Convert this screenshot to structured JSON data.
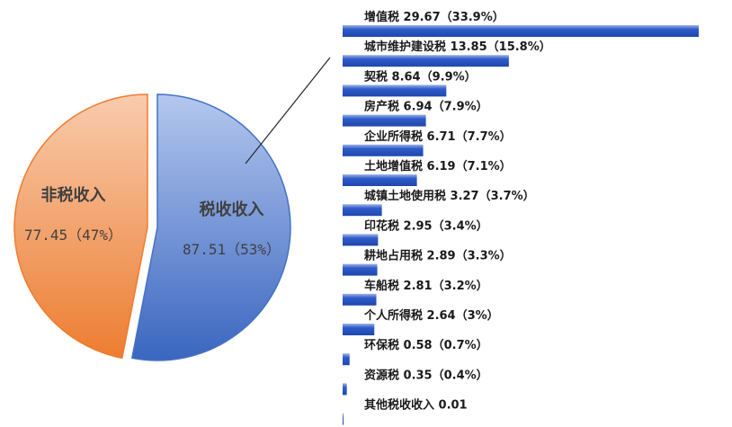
{
  "chart_data": [
    {
      "type": "pie",
      "slices": [
        {
          "label": "税收收入",
          "value": 87.51,
          "percent_label": "87.51（53%）",
          "color": "#4472C4"
        },
        {
          "label": "非税收入",
          "value": 77.45,
          "percent_label": "77.45（47%）",
          "color": "#ED7D31"
        }
      ],
      "exploded": true
    },
    {
      "type": "bar",
      "orientation": "horizontal",
      "color": "#2F5BC9",
      "categories": [
        "增值税",
        "城市维护建设税",
        "契税",
        "房产税",
        "企业所得税",
        "土地增值税",
        "城镇土地使用税",
        "印花税",
        "耕地占用税",
        "车船税",
        "个人所得税",
        "环保税",
        "资源税",
        "其他税收收入"
      ],
      "values": [
        29.67,
        13.85,
        8.64,
        6.94,
        6.71,
        6.19,
        3.27,
        2.95,
        2.89,
        2.81,
        2.64,
        0.58,
        0.35,
        0.01
      ],
      "labels": [
        "增值税 29.67（33.9%）",
        "城市维护建设税 13.85（15.8%）",
        "契税 8.64（9.9%）",
        "房产税 6.94（7.9%）",
        "企业所得税 6.71（7.7%）",
        "土地增值税 6.19（7.1%）",
        "城镇土地使用税 3.27（3.7%）",
        "印花税 2.95（3.4%）",
        "耕地占用税 2.89（3.3%）",
        "车船税 2.81（3.2%）",
        "个人所得税 2.64（3%）",
        "环保税 0.58（0.7%）",
        "资源税 0.35（0.4%）",
        "其他税收收入 0.01"
      ],
      "connector": "税收收入"
    }
  ]
}
